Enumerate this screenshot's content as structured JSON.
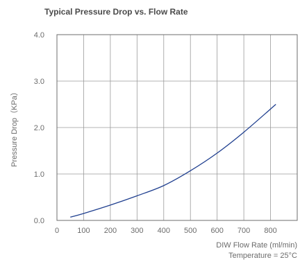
{
  "chart_data": {
    "type": "line",
    "title": "Typical Pressure Drop vs. Flow Rate",
    "xlabel": "DIW Flow Rate (ml/min)",
    "ylabel": "Pressure Drop（KPa）",
    "annotation": "Temperature = 25°C",
    "xlim": [
      0,
      900
    ],
    "ylim": [
      0,
      4
    ],
    "x_ticks": [
      "0",
      "100",
      "200",
      "300",
      "400",
      "500",
      "600",
      "700",
      "800"
    ],
    "x_tick_values": [
      0,
      100,
      200,
      300,
      400,
      500,
      600,
      700,
      800
    ],
    "y_ticks": [
      "0.0",
      "1.0",
      "2.0",
      "3.0",
      "4.0"
    ],
    "y_tick_values": [
      0,
      1,
      2,
      3,
      4
    ],
    "grid": true,
    "series": [
      {
        "color": "#1f3f8f",
        "x": [
          50,
          100,
          200,
          300,
          400,
          500,
          600,
          700,
          820
        ],
        "y": [
          0.07,
          0.15,
          0.33,
          0.53,
          0.75,
          1.07,
          1.45,
          1.9,
          2.5
        ]
      }
    ]
  }
}
